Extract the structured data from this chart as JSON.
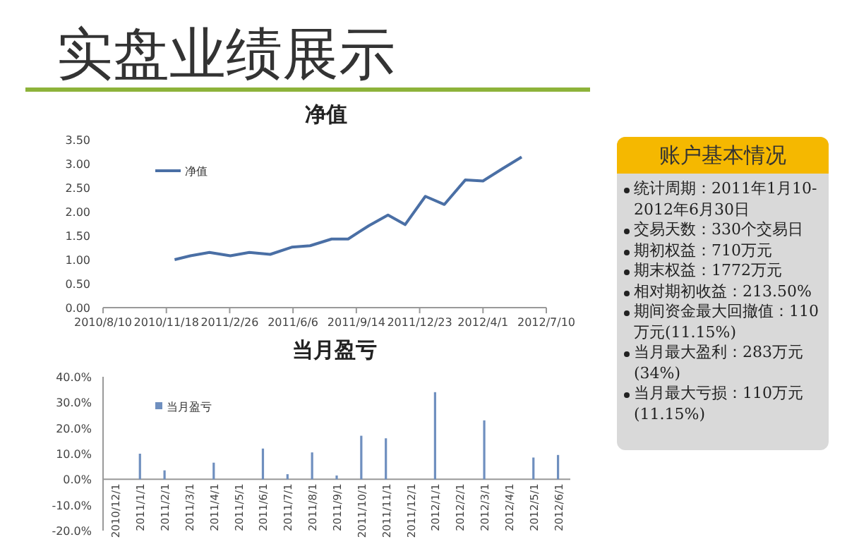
{
  "chart_data": [
    {
      "type": "other",
      "title": "实盘业绩展示"
    },
    {
      "type": "line",
      "title": "净值",
      "legend": "top left",
      "series": [
        {
          "name": "净值",
          "color": "#4a6fa5",
          "x": [
            "2010-12-01",
            "2010-12-26",
            "2011-01-25",
            "2011-02-27",
            "2011-03-29",
            "2011-05-01",
            "2011-06-04",
            "2011-07-03",
            "2011-08-06",
            "2011-09-01",
            "2011-10-04",
            "2011-11-03",
            "2011-11-30",
            "2012-01-01",
            "2012-01-31",
            "2012-03-04",
            "2012-04-01",
            "2012-05-01",
            "2012-06-01"
          ],
          "values": [
            1.0,
            1.08,
            1.15,
            1.08,
            1.15,
            1.11,
            1.26,
            1.29,
            1.43,
            1.43,
            1.71,
            1.93,
            1.73,
            2.32,
            2.15,
            2.66,
            2.64,
            2.89,
            3.14
          ]
        }
      ],
      "xlim": [
        "2010-08-10",
        "2012-07-10"
      ],
      "xticks": [
        {
          "value": "2010-08-10",
          "label": "2010/8/10"
        },
        {
          "value": "2010-11-18",
          "label": "2010/11/18"
        },
        {
          "value": "2011-02-26",
          "label": "2011/2/26"
        },
        {
          "value": "2011-06-06",
          "label": "2011/6/6"
        },
        {
          "value": "2011-09-14",
          "label": "2011/9/14"
        },
        {
          "value": "2011-12-23",
          "label": "2011/12/23"
        },
        {
          "value": "2012-04-01",
          "label": "2012/4/1"
        },
        {
          "value": "2012-07-10",
          "label": "2012/7/10"
        }
      ],
      "ylim": [
        0,
        3.5
      ],
      "yticks": [
        {
          "value": 0,
          "label": "0.00"
        },
        {
          "value": 0.5,
          "label": "0.50"
        },
        {
          "value": 1,
          "label": "1.00"
        },
        {
          "value": 1.5,
          "label": "1.50"
        },
        {
          "value": 2,
          "label": "2.00"
        },
        {
          "value": 2.5,
          "label": "2.50"
        },
        {
          "value": 3,
          "label": "3.00"
        },
        {
          "value": 3.5,
          "label": "3.50"
        }
      ]
    },
    {
      "type": "bar",
      "title": "当月盈亏",
      "legend": "top left",
      "categories": [
        "2010/12/1",
        "2011/1/1",
        "2011/2/1",
        "2011/3/1",
        "2011/4/1",
        "2011/5/1",
        "2011/6/1",
        "2011/7/1",
        "2011/8/1",
        "2011/9/1",
        "2011/10/1",
        "2011/11/1",
        "2011/12/1",
        "2012/1/1",
        "2012/2/1",
        "2012/3/1",
        "2012/4/1",
        "2012/5/1",
        "2012/6/1"
      ],
      "series": [
        {
          "name": "当月盈亏",
          "color": "#6f8fbf",
          "values": [
            0,
            10,
            3.5,
            0,
            6.5,
            0,
            12,
            2,
            10.5,
            1.5,
            17,
            16,
            0,
            34,
            0,
            23,
            0,
            8.5,
            9.5
          ]
        }
      ],
      "ylim": [
        -20,
        40
      ],
      "yticks": [
        {
          "value": -20,
          "label": "-20.0%"
        },
        {
          "value": -10,
          "label": "-10.0%"
        },
        {
          "value": 0,
          "label": "0.0%"
        },
        {
          "value": 10,
          "label": "10.0%"
        },
        {
          "value": 20,
          "label": "20.0%"
        },
        {
          "value": 30,
          "label": "30.0%"
        },
        {
          "value": 40,
          "label": "40.0%"
        }
      ]
    },
    {
      "type": "other",
      "title": "账户基本情况",
      "annotations": [
        "统计周期：2011年1月10-2012年6月30日",
        "交易天数：330个交易日",
        "期初权益：710万元",
        "期末权益：1772万元",
        "相对期初收益：213.50%",
        "期间资金最大回撤值：110万元(11.15%)",
        "当月最大盈利：283万元(34%)",
        "当月最大亏损：110万元(11.15%)"
      ]
    }
  ]
}
